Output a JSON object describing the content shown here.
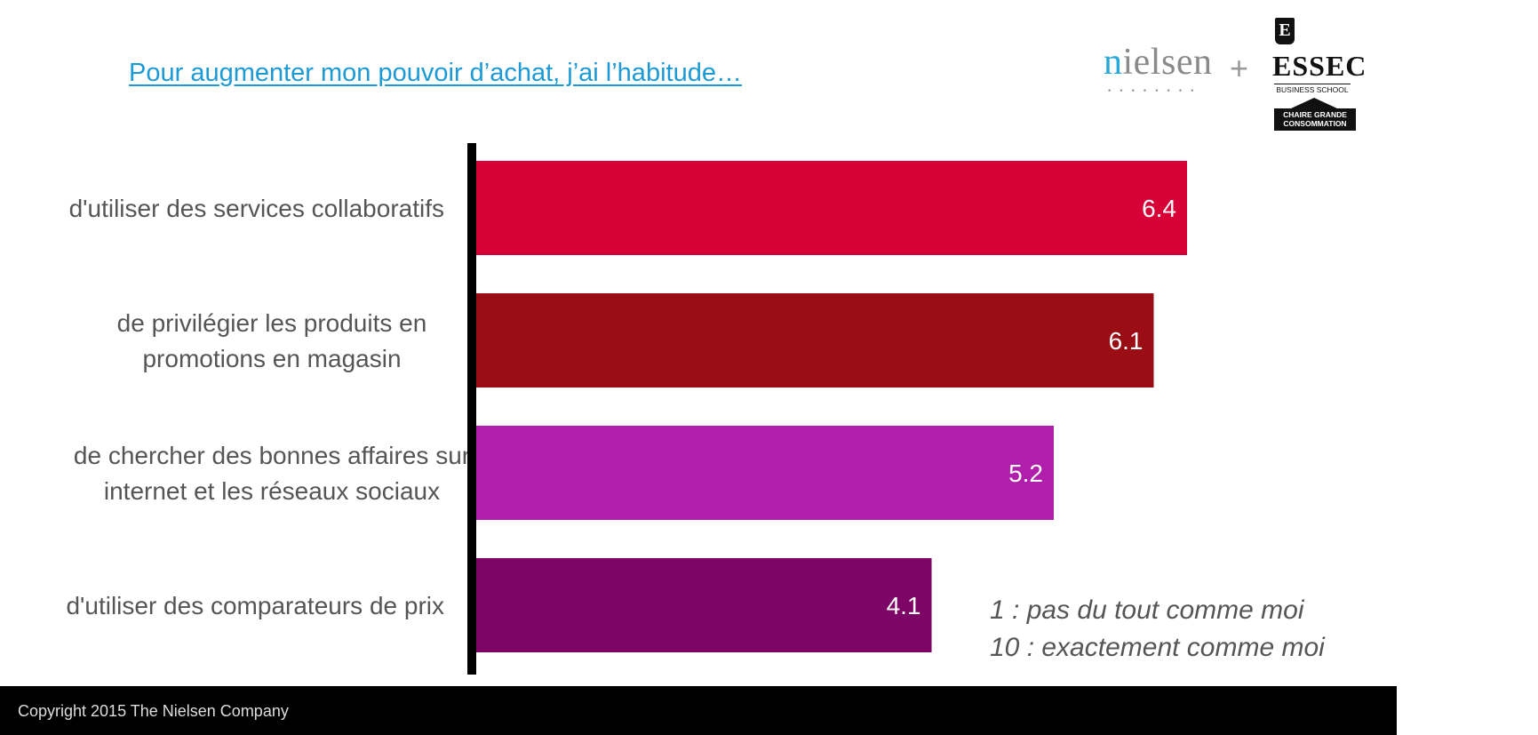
{
  "title": "Pour augmenter mon pouvoir d’achat, j’ai l’habitude…",
  "logos": {
    "nielsen": "nielsen",
    "plus": "+",
    "essec": "ESSEC",
    "essec_crest": "E",
    "essec_sub": "BUSINESS SCHOOL",
    "essec_chair": "CHAIRE GRANDE CONSOMMATION"
  },
  "chart_data": {
    "type": "bar",
    "orientation": "horizontal",
    "categories": [
      [
        "d'utiliser des services collaboratifs"
      ],
      [
        "de privilégier les produits en",
        "promotions en magasin"
      ],
      [
        "de chercher des bonnes affaires sur",
        "internet et les réseaux sociaux"
      ],
      [
        "d'utiliser des comparateurs de prix"
      ]
    ],
    "values": [
      6.4,
      6.1,
      5.2,
      4.1
    ],
    "value_labels": [
      "6.4",
      "6.1",
      "5.2",
      "4.1"
    ],
    "colors": [
      "#d70037",
      "#9b0d14",
      "#b01eac",
      "#7d0566"
    ],
    "xlim": [
      0,
      10
    ],
    "grid": false,
    "axis_color": "#000000"
  },
  "legend": {
    "line1": "1 : pas du tout comme moi",
    "line2": "10 : exactement comme moi"
  },
  "footer": {
    "copyright": "Copyright 2015 The Nielsen Company"
  }
}
